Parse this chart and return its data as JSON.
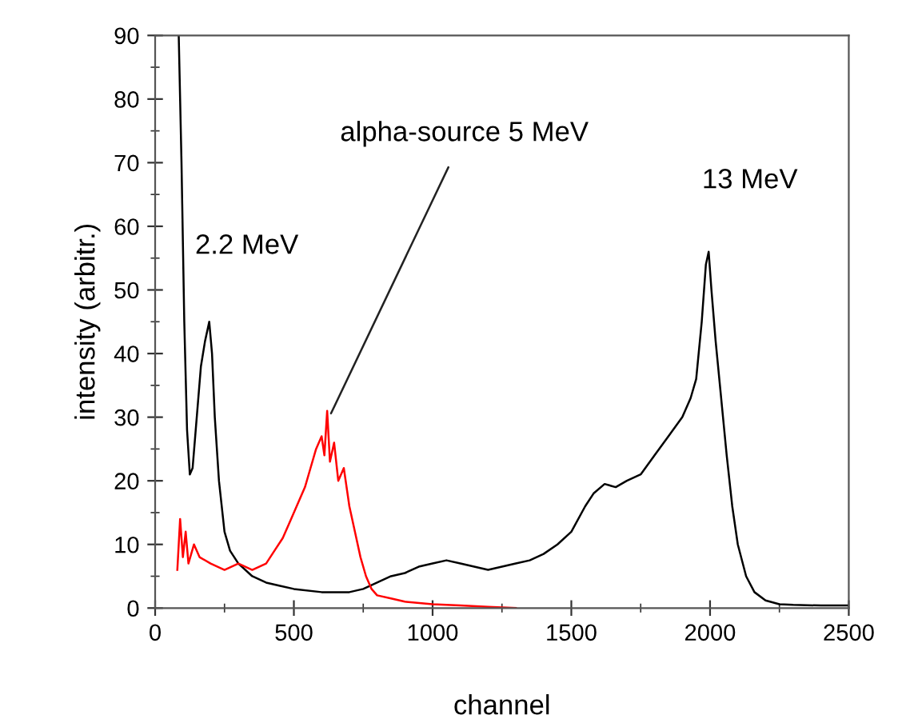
{
  "chart_data": {
    "type": "line",
    "xlabel": "channel",
    "ylabel": "intensity (arbitr.)",
    "xlim": [
      0,
      2500
    ],
    "xticks": [
      0,
      500,
      1000,
      1500,
      2000,
      2500
    ],
    "ylim": [
      0,
      90
    ],
    "yticks": [
      0,
      10,
      20,
      30,
      40,
      50,
      60,
      70,
      80,
      90
    ],
    "grid": false,
    "marker": "none",
    "line_style": "solid",
    "series": [
      {
        "color": "#000000",
        "x": [
          85,
          95,
          105,
          115,
          125,
          135,
          150,
          165,
          180,
          195,
          205,
          215,
          230,
          250,
          270,
          300,
          350,
          400,
          450,
          500,
          600,
          700,
          750,
          800,
          850,
          900,
          950,
          1000,
          1050,
          1100,
          1150,
          1200,
          1250,
          1300,
          1350,
          1400,
          1450,
          1500,
          1550,
          1580,
          1620,
          1660,
          1700,
          1750,
          1800,
          1850,
          1900,
          1930,
          1950,
          1970,
          1985,
          1995,
          2005,
          2020,
          2040,
          2060,
          2080,
          2100,
          2130,
          2160,
          2200,
          2250,
          2300,
          2400,
          2500
        ],
        "values": [
          90,
          70,
          45,
          28,
          21,
          22,
          30,
          38,
          42,
          45,
          40,
          30,
          20,
          12,
          9,
          7,
          5,
          4,
          3.5,
          3,
          2.5,
          2.5,
          3,
          4,
          5,
          5.5,
          6.5,
          7,
          7.5,
          7,
          6.5,
          6,
          6.5,
          7,
          7.5,
          8.5,
          10,
          12,
          16,
          18,
          19.5,
          19,
          20,
          21,
          24,
          27,
          30,
          33,
          36,
          45,
          54,
          56,
          50,
          42,
          33,
          24,
          16,
          10,
          5,
          2.5,
          1.2,
          0.6,
          0.5,
          0.4,
          0.4
        ]
      },
      {
        "color": "#ff0000",
        "x": [
          80,
          90,
          100,
          110,
          120,
          140,
          160,
          200,
          250,
          300,
          350,
          400,
          430,
          460,
          490,
          520,
          540,
          560,
          580,
          600,
          610,
          620,
          630,
          645,
          660,
          680,
          700,
          720,
          740,
          760,
          780,
          800,
          850,
          900,
          1000,
          1100,
          1200,
          1300
        ],
        "values": [
          6,
          14,
          8,
          12,
          7,
          10,
          8,
          7,
          6,
          7,
          6,
          7,
          9,
          11,
          14,
          17,
          19,
          22,
          25,
          27,
          24,
          31,
          23,
          26,
          20,
          22,
          16,
          12,
          8,
          5,
          3,
          2,
          1.5,
          1,
          0.6,
          0.4,
          0.2,
          0
        ]
      }
    ],
    "annotations": [
      {
        "text": "alpha-source 5 MeV",
        "x": 634,
        "y": 30.6
      },
      {
        "text": "2.2 MeV",
        "x": 200,
        "y": 45
      },
      {
        "text": "13 MeV",
        "x": 1995,
        "y": 56
      }
    ]
  }
}
